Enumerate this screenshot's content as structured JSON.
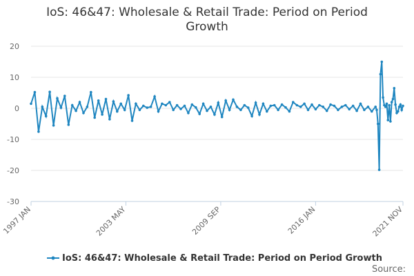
{
  "chart_data": {
    "type": "line",
    "title_lines": [
      "IoS: 46&47: Wholesale & Retail Trade: Period on Period",
      "Growth"
    ],
    "xlabel": "",
    "ylabel": "",
    "x_ticks": [
      "1997 JAN",
      "2003 MAY",
      "2009 SEP",
      "2016 JAN",
      "2021 NOV"
    ],
    "y_ticks": [
      20,
      10,
      0,
      -10,
      -20,
      -30
    ],
    "ylim": [
      -30,
      20
    ],
    "x_range": [
      "1997 JAN",
      "2021 NOV"
    ],
    "grid": true,
    "legend_position": "bottom",
    "series": [
      {
        "name": "IoS: 46&47: Wholesale & Retail Trade: Period on Period Growth",
        "color": "#1f86c0",
        "x": [
          "1997 JAN",
          "1997 APR",
          "1997 JUL",
          "1997 OCT",
          "1998 JAN",
          "1998 APR",
          "1998 JUL",
          "1998 OCT",
          "1999 JAN",
          "1999 APR",
          "1999 JUL",
          "1999 OCT",
          "2000 JAN",
          "2000 APR",
          "2000 JUL",
          "2000 OCT",
          "2001 JAN",
          "2001 APR",
          "2001 JUL",
          "2001 OCT",
          "2002 JAN",
          "2002 APR",
          "2002 JUL",
          "2002 OCT",
          "2003 JAN",
          "2003 APR",
          "2003 JUL",
          "2003 OCT",
          "2004 JAN",
          "2004 APR",
          "2004 JUL",
          "2004 OCT",
          "2005 JAN",
          "2005 APR",
          "2005 JUL",
          "2005 OCT",
          "2006 JAN",
          "2006 APR",
          "2006 JUL",
          "2006 OCT",
          "2007 JAN",
          "2007 APR",
          "2007 JUL",
          "2007 OCT",
          "2008 JAN",
          "2008 APR",
          "2008 JUL",
          "2008 OCT",
          "2009 JAN",
          "2009 APR",
          "2009 JUL",
          "2009 OCT",
          "2010 JAN",
          "2010 APR",
          "2010 JUL",
          "2010 OCT",
          "2011 JAN",
          "2011 APR",
          "2011 JUL",
          "2011 OCT",
          "2012 JAN",
          "2012 APR",
          "2012 JUL",
          "2012 OCT",
          "2013 JAN",
          "2013 APR",
          "2013 JUL",
          "2013 OCT",
          "2014 JAN",
          "2014 APR",
          "2014 JUL",
          "2014 OCT",
          "2015 JAN",
          "2015 APR",
          "2015 JUL",
          "2015 OCT",
          "2016 JAN",
          "2016 APR",
          "2016 JUL",
          "2016 OCT",
          "2017 JAN",
          "2017 APR",
          "2017 JUL",
          "2017 OCT",
          "2018 JAN",
          "2018 APR",
          "2018 JUL",
          "2018 OCT",
          "2019 JAN",
          "2019 APR",
          "2019 JUL",
          "2019 OCT",
          "2020 JAN",
          "2020 FEB",
          "2020 MAR",
          "2020 APR",
          "2020 MAY",
          "2020 JUN",
          "2020 JUL",
          "2020 AUG",
          "2020 SEP",
          "2020 OCT",
          "2020 NOV",
          "2020 DEC",
          "2021 JAN",
          "2021 FEB",
          "2021 MAR",
          "2021 APR",
          "2021 MAY",
          "2021 JUN",
          "2021 JUL",
          "2021 AUG",
          "2021 SEP",
          "2021 OCT",
          "2021 NOV"
        ],
        "values": [
          1.5,
          5.2,
          -7.5,
          0.5,
          -2.5,
          5.3,
          -5.5,
          3.2,
          0.2,
          4.0,
          -5.3,
          1.0,
          -0.8,
          2.0,
          -1.5,
          0.5,
          5.2,
          -3.0,
          2.5,
          -2.0,
          3.0,
          -3.5,
          2.2,
          -1.0,
          1.5,
          -0.5,
          4.2,
          -4.0,
          1.5,
          -0.5,
          0.8,
          0.2,
          0.5,
          3.8,
          -1.0,
          1.5,
          1.0,
          2.0,
          -0.5,
          1.0,
          -0.2,
          0.8,
          -1.5,
          1.2,
          0.3,
          -1.8,
          1.5,
          -0.8,
          0.5,
          -2.0,
          1.8,
          -2.8,
          2.5,
          -0.5,
          2.8,
          0.5,
          -0.5,
          1.0,
          0.2,
          -2.5,
          1.8,
          -2.0,
          1.5,
          -1.0,
          0.8,
          1.0,
          -0.5,
          1.2,
          0.3,
          -1.0,
          2.0,
          1.0,
          0.5,
          1.5,
          -0.5,
          1.2,
          -0.3,
          1.0,
          0.5,
          -0.8,
          1.2,
          0.8,
          -0.5,
          0.5,
          1.0,
          -0.3,
          0.8,
          -0.8,
          1.5,
          -0.5,
          0.5,
          -1.0,
          0.5,
          -0.5,
          -5.0,
          -19.8,
          11.0,
          15.0,
          3.5,
          1.0,
          0.5,
          1.5,
          -3.8,
          1.0,
          -4.2,
          2.0,
          3.0,
          6.5,
          1.2,
          -1.5,
          -1.0,
          0.5,
          1.2,
          -0.5,
          0.8
        ]
      }
    ]
  },
  "legend": {
    "label": "IoS: 46&47: Wholesale & Retail Trade: Period on Period Growth"
  },
  "source_label": "Source:"
}
